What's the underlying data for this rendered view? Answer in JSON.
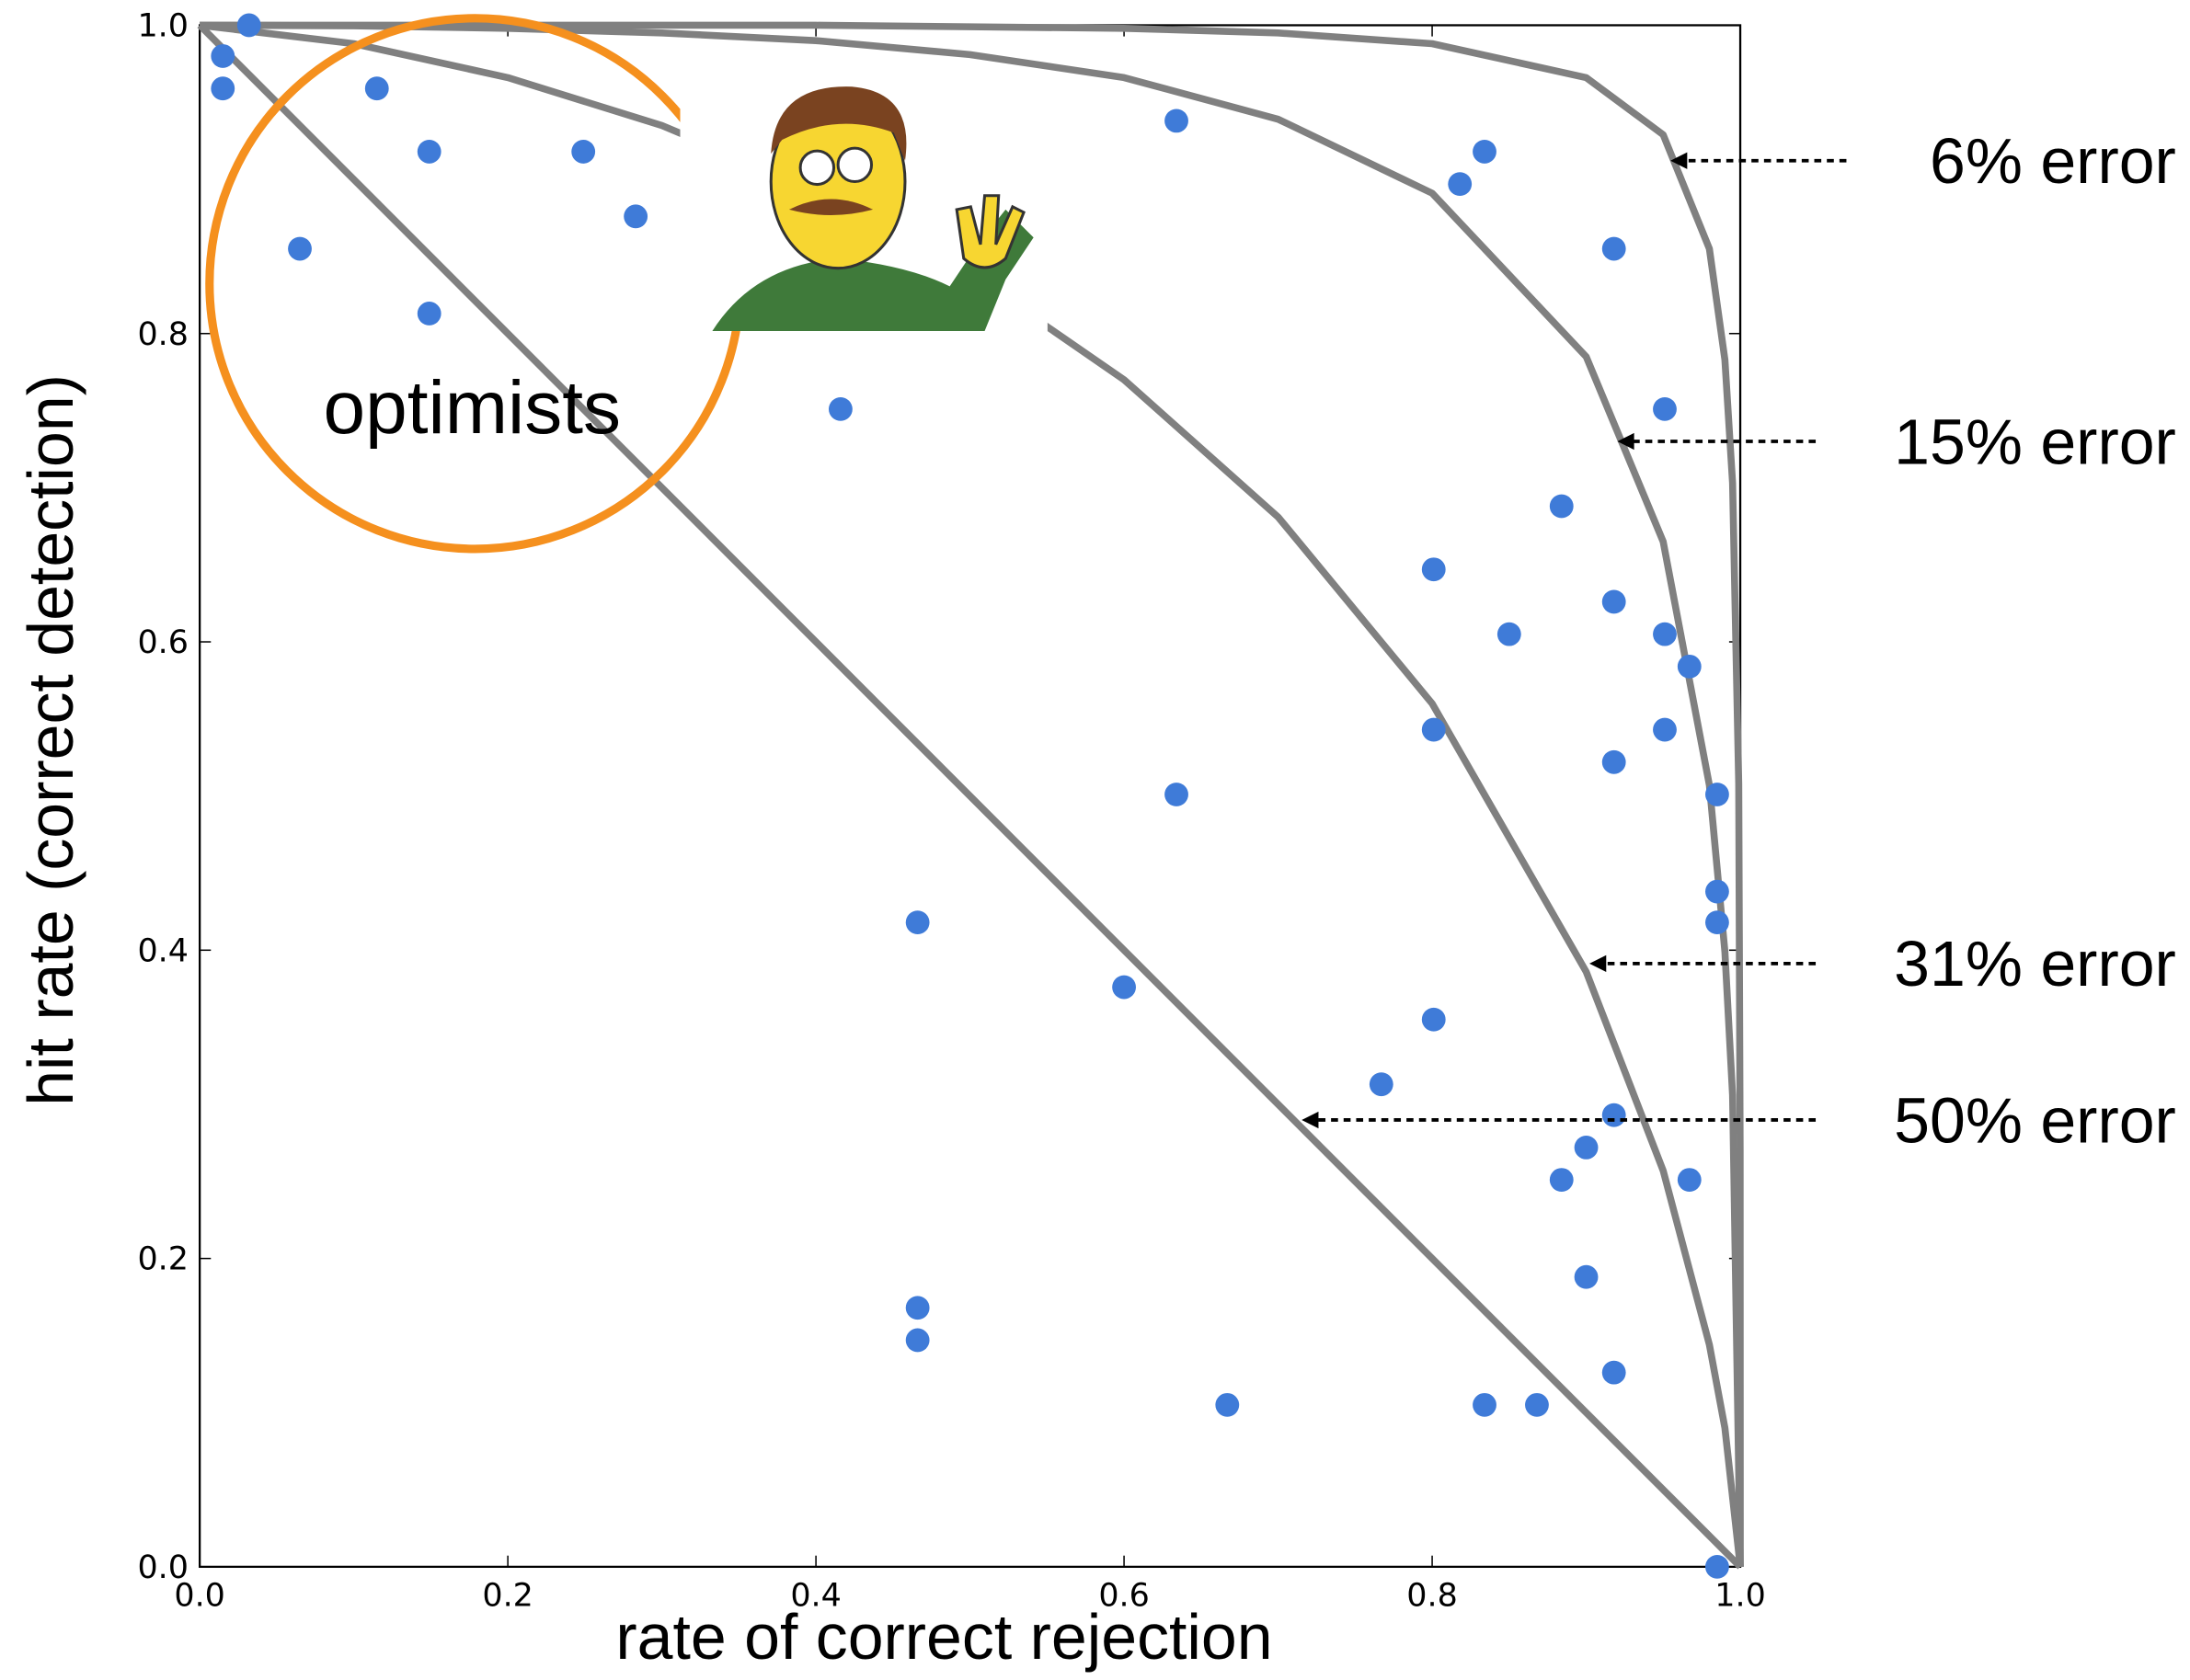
{
  "chart_data": {
    "type": "scatter",
    "xlabel": "rate of correct rejection",
    "ylabel": "hit rate (correct detection)",
    "annotation": "optimists",
    "color": "#3f7bd8",
    "x": [
      0.032,
      0.015,
      0.015,
      0.115,
      0.149,
      0.249,
      0.283,
      0.065,
      0.149,
      0.416,
      0.634,
      0.834,
      0.818,
      0.918,
      0.951,
      0.884,
      0.801,
      0.918,
      0.85,
      0.951,
      0.967,
      0.801,
      0.951,
      0.918,
      0.985,
      0.634,
      0.985,
      0.985,
      0.466,
      0.6,
      0.801,
      0.767,
      0.918,
      0.9,
      0.884,
      0.967,
      0.9,
      0.466,
      0.466,
      0.918,
      0.667,
      0.834,
      0.868,
      0.985
    ],
    "values": [
      1.0,
      0.98,
      0.959,
      0.959,
      0.918,
      0.918,
      0.876,
      0.855,
      0.813,
      0.751,
      0.938,
      0.918,
      0.897,
      0.855,
      0.751,
      0.688,
      0.647,
      0.626,
      0.605,
      0.605,
      0.584,
      0.543,
      0.543,
      0.522,
      0.501,
      0.501,
      0.438,
      0.418,
      0.418,
      0.376,
      0.355,
      0.313,
      0.293,
      0.272,
      0.251,
      0.251,
      0.188,
      0.168,
      0.147,
      0.126,
      0.105,
      0.105,
      0.105,
      0.0
    ],
    "lines": [
      {
        "name": "6% error",
        "color": "#808080",
        "x": [
          0,
          0.2,
          0.4,
          0.5,
          0.6,
          0.7,
          0.8,
          0.9,
          0.95,
          0.98,
          0.99,
          0.995,
          0.999,
          0.9999,
          1
        ],
        "values": [
          1,
          1,
          1,
          0.999,
          0.998,
          0.995,
          0.988,
          0.966,
          0.929,
          0.855,
          0.783,
          0.703,
          0.508,
          0.27,
          0
        ]
      },
      {
        "name": "15% error",
        "color": "#808080",
        "x": [
          0,
          0.1,
          0.2,
          0.3,
          0.4,
          0.5,
          0.6,
          0.7,
          0.8,
          0.9,
          0.95,
          0.98,
          0.99,
          0.995,
          1
        ],
        "values": [
          1,
          0.9996,
          0.998,
          0.995,
          0.99,
          0.981,
          0.966,
          0.939,
          0.891,
          0.785,
          0.665,
          0.507,
          0.399,
          0.306,
          0
        ]
      },
      {
        "name": "31% error",
        "color": "#808080",
        "x": [
          0,
          0.1,
          0.2,
          0.3,
          0.4,
          0.5,
          0.6,
          0.7,
          0.8,
          0.9,
          0.95,
          0.98,
          0.99,
          1
        ],
        "values": [
          1,
          0.988,
          0.966,
          0.935,
          0.893,
          0.839,
          0.77,
          0.681,
          0.56,
          0.386,
          0.257,
          0.144,
          0.09,
          0
        ]
      },
      {
        "name": "50% error",
        "color": "#808080",
        "x": [
          0,
          1
        ],
        "values": [
          1,
          0
        ]
      }
    ],
    "xlim": [
      0,
      1
    ],
    "ylim": [
      0,
      1
    ],
    "xticks": [
      {
        "value": 0,
        "label": "0.0"
      },
      0.2,
      0.4,
      0.6,
      0.8,
      {
        "value": 1,
        "label": "1.0"
      }
    ],
    "yticks": [
      {
        "value": 0,
        "label": "0.0"
      },
      0.2,
      0.4,
      0.6,
      0.8,
      {
        "value": 1,
        "label": "1.0"
      }
    ]
  }
}
